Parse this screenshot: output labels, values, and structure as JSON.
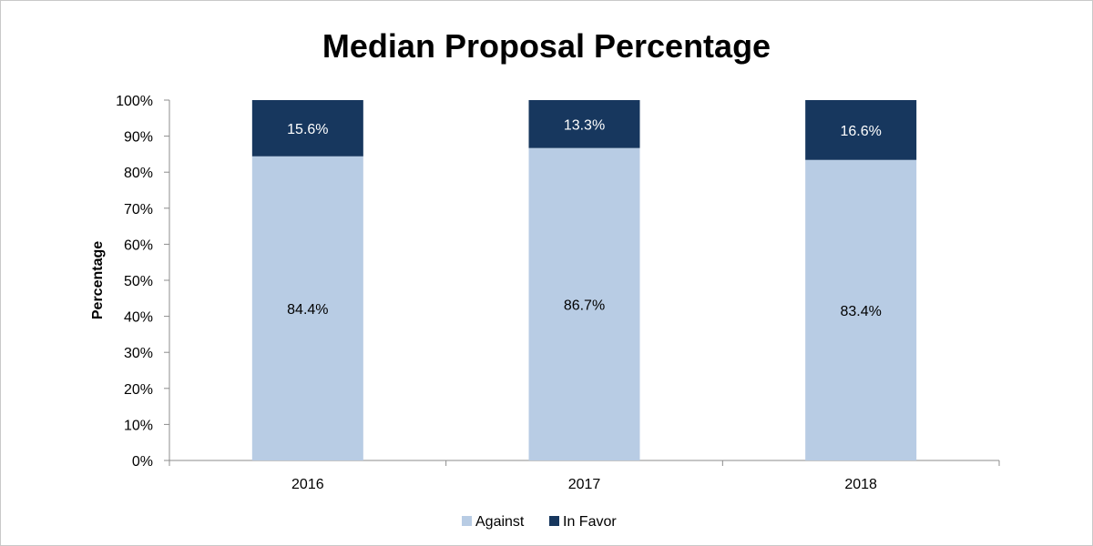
{
  "chart_data": {
    "type": "bar",
    "stacked": true,
    "title": "Median Proposal Percentage",
    "xlabel": "",
    "ylabel": "Percentage",
    "categories": [
      "2016",
      "2017",
      "2018"
    ],
    "ylim": [
      0,
      100
    ],
    "yticks": [
      "0%",
      "10%",
      "20%",
      "30%",
      "40%",
      "50%",
      "60%",
      "70%",
      "80%",
      "90%",
      "100%"
    ],
    "series": [
      {
        "name": "Against",
        "values": [
          84.4,
          86.7,
          83.4
        ],
        "labels": [
          "84.4%",
          "86.7%",
          "83.4%"
        ],
        "color": "#b8cce4",
        "label_color": "#000000"
      },
      {
        "name": "In Favor",
        "values": [
          15.6,
          13.3,
          16.6
        ],
        "labels": [
          "15.6%",
          "13.3%",
          "16.6%"
        ],
        "color": "#17375e",
        "label_color": "#ffffff"
      }
    ],
    "grid": false,
    "legend": "bottom-center"
  }
}
